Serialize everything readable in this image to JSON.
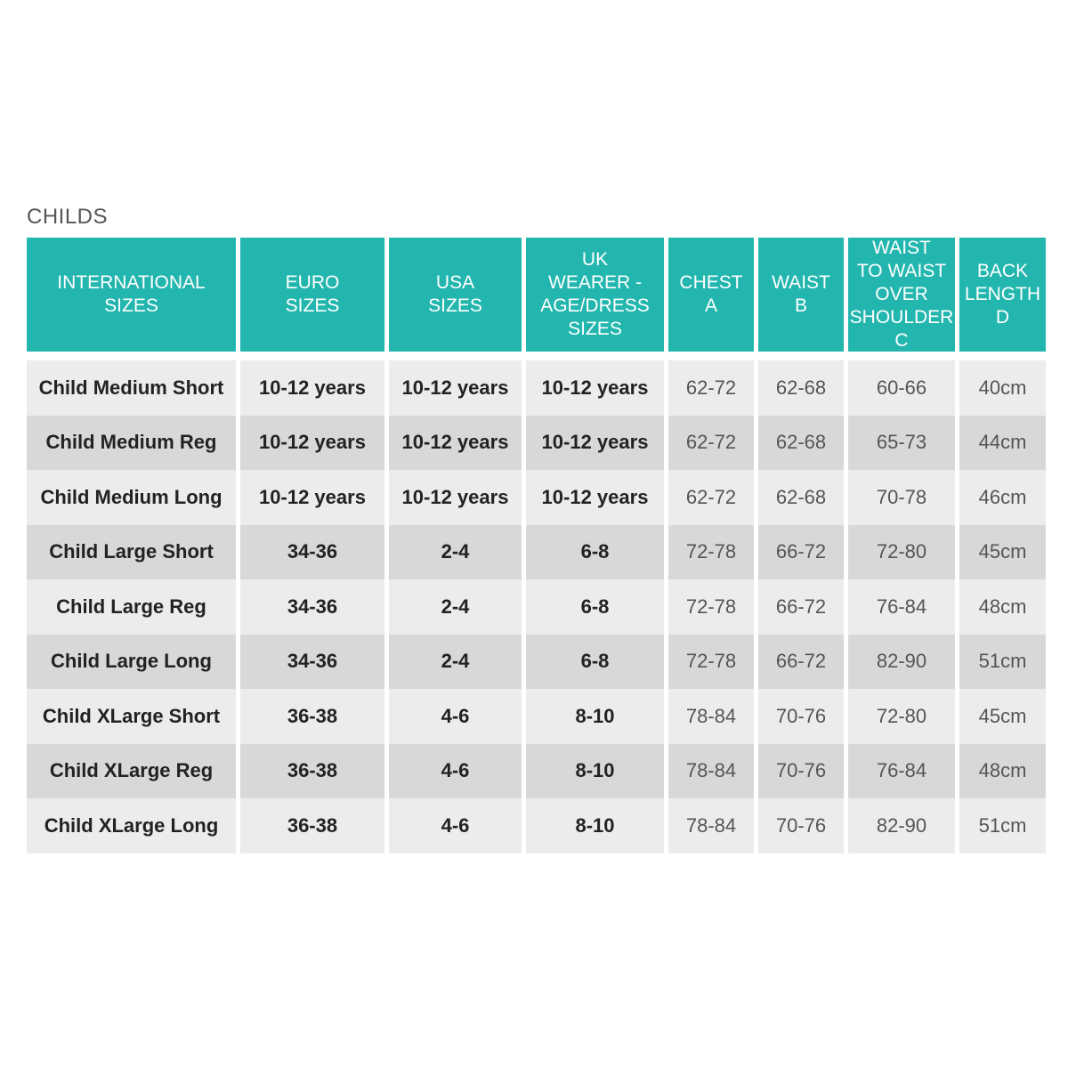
{
  "title": "CHILDS",
  "table": {
    "header": [
      [
        "INTERNATIONAL",
        "SIZES"
      ],
      [
        "EURO",
        "SIZES"
      ],
      [
        "USA",
        "SIZES"
      ],
      [
        "UK",
        "WEARER -",
        "AGE/DRESS",
        "SIZES"
      ],
      [
        "CHEST",
        "A"
      ],
      [
        "WAIST",
        "B"
      ],
      [
        "WAIST",
        "TO WAIST",
        "OVER",
        "SHOULDER",
        "C"
      ],
      [
        "BACK",
        "LENGTH",
        "D"
      ]
    ],
    "rows": [
      [
        "Child Medium Short",
        "10-12 years",
        "10-12 years",
        "10-12 years",
        "62-72",
        "62-68",
        "60-66",
        "40cm"
      ],
      [
        "Child Medium Reg",
        "10-12 years",
        "10-12 years",
        "10-12 years",
        "62-72",
        "62-68",
        "65-73",
        "44cm"
      ],
      [
        "Child Medium Long",
        "10-12 years",
        "10-12 years",
        "10-12 years",
        "62-72",
        "62-68",
        "70-78",
        "46cm"
      ],
      [
        "Child Large Short",
        "34-36",
        "2-4",
        "6-8",
        "72-78",
        "66-72",
        "72-80",
        "45cm"
      ],
      [
        "Child Large Reg",
        "34-36",
        "2-4",
        "6-8",
        "72-78",
        "66-72",
        "76-84",
        "48cm"
      ],
      [
        "Child Large Long",
        "34-36",
        "2-4",
        "6-8",
        "72-78",
        "66-72",
        "82-90",
        "51cm"
      ],
      [
        "Child XLarge Short",
        "36-38",
        "4-6",
        "8-10",
        "78-84",
        "70-76",
        "72-80",
        "45cm"
      ],
      [
        "Child XLarge Reg",
        "36-38",
        "4-6",
        "8-10",
        "78-84",
        "70-76",
        "76-84",
        "48cm"
      ],
      [
        "Child XLarge Long",
        "36-38",
        "4-6",
        "8-10",
        "78-84",
        "70-76",
        "82-90",
        "51cm"
      ]
    ]
  }
}
